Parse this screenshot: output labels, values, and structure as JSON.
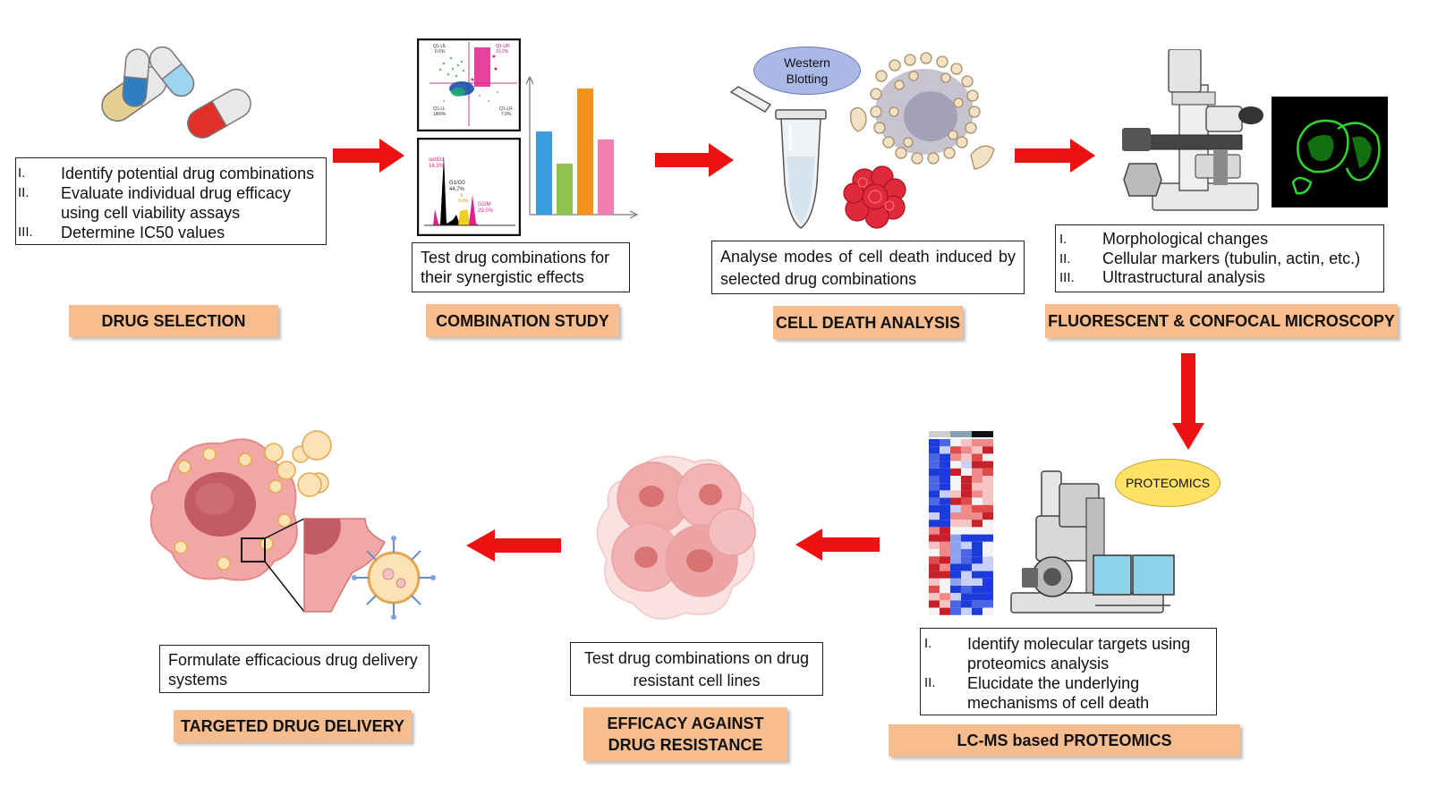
{
  "stages": {
    "drug_selection": {
      "label": "DRUG SELECTION",
      "items": [
        {
          "num": "I.",
          "text": "Identify potential drug combinations"
        },
        {
          "num": "II.",
          "text": "Evaluate individual drug efficacy using cell viability assays"
        },
        {
          "num": "III.",
          "text": "Determine IC50 values"
        }
      ]
    },
    "combination_study": {
      "label": "COMBINATION STUDY",
      "text": "Test drug combinations for their synergistic effects"
    },
    "cell_death": {
      "label": "CELL DEATH ANALYSIS",
      "text": "Analyse modes of cell death induced by selected drug combinations",
      "bubble": "Western Blotting"
    },
    "microscopy": {
      "label": "FLUORESCENT & CONFOCAL MICROSCOPY",
      "items": [
        {
          "num": "I.",
          "text": "Morphological changes"
        },
        {
          "num": "II.",
          "text": "Cellular markers (tubulin, actin, etc.)"
        },
        {
          "num": "III.",
          "text": "Ultrastructural analysis"
        }
      ]
    },
    "proteomics": {
      "label": "LC-MS based PROTEOMICS",
      "bubble": "PROTEOMICS",
      "items": [
        {
          "num": "I.",
          "text": "Identify molecular targets using proteomics analysis"
        },
        {
          "num": "II.",
          "text": "Elucidate the underlying mechanisms of cell death"
        }
      ]
    },
    "drug_resistance": {
      "label_line1": "EFFICACY AGAINST",
      "label_line2": "DRUG RESISTANCE",
      "text": "Test drug combinations on drug resistant cell lines"
    },
    "targeted_delivery": {
      "label": "TARGETED DRUG DELIVERY",
      "text": "Formulate efficacious drug delivery systems"
    }
  },
  "flow_plot_labels": {
    "q1_ul": "Q1-UL",
    "q1_ur": "Q1-UR",
    "q1_ll": "Q1-LL",
    "q1_lr": "Q1-LR",
    "ul_val": "0.6%",
    "ur_val": "10.2%",
    "ll_val": "18.9%",
    "lr_val": "7.9%",
    "subg1": "subG1",
    "subg1_val": "16.3%",
    "g1g0": "G1/G0",
    "g1g0_val": "44.7%",
    "s": "S",
    "s_val": "9.8%",
    "g2m": "G2/M",
    "g2m_val": "29.0%"
  },
  "colors": {
    "label_bg": "#f7bd8f",
    "arrow": "#ee1111",
    "bubble_blue": "#a9b8e6",
    "bubble_yellow": "#ffe266"
  },
  "bar_chart": {
    "values": [
      0.62,
      0.38,
      0.94,
      0.56
    ],
    "colors": [
      "#3b9be0",
      "#8dc34a",
      "#f5921e",
      "#f17fb0"
    ]
  },
  "icons": [
    "capsule-icon",
    "flow-cytometry-plot",
    "bar-chart-icon",
    "microtube-icon",
    "apoptotic-cell-icon",
    "necrotic-cell-icon",
    "microscope-icon",
    "fluorescence-image",
    "heatmap-icon",
    "mass-spectrometer-icon",
    "cancer-cell-cluster-icon",
    "nanoparticle-icon"
  ]
}
